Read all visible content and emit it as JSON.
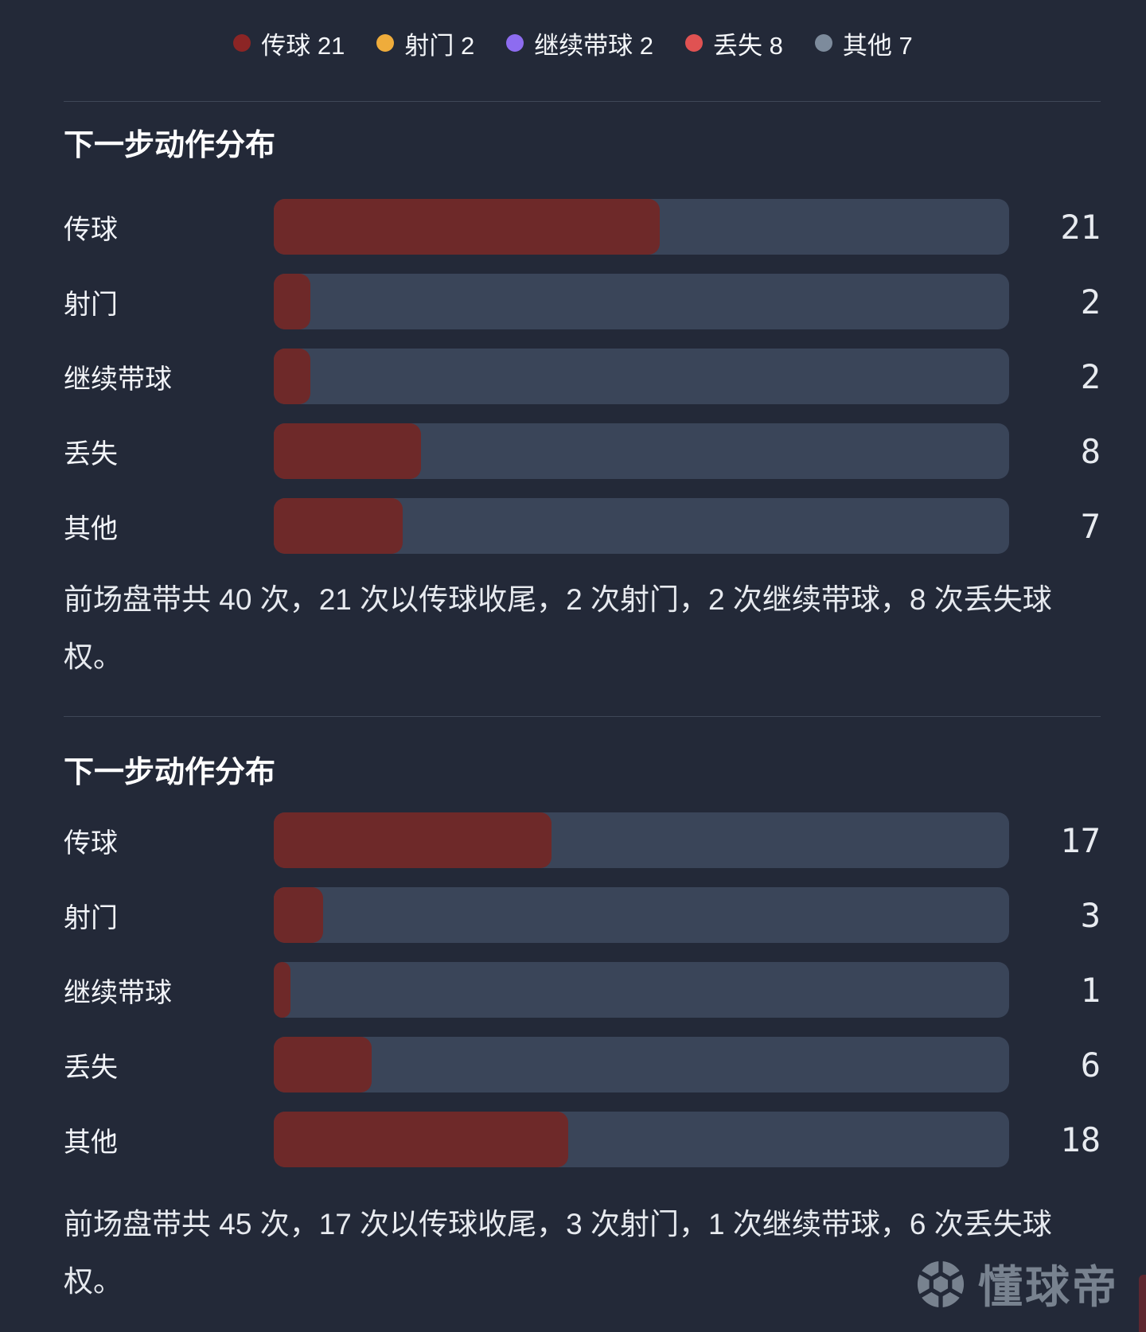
{
  "colors": {
    "background": "#232938",
    "bar_track": "#3a4559",
    "bar_fill": "#6e2929",
    "divider": "rgba(162,176,199,0.22)",
    "text_primary": "#ffffff",
    "text_secondary": "#e7eaef",
    "watermark": "#78828f",
    "corner_accent": "#5e2730"
  },
  "legend": {
    "items": [
      {
        "label": "传球 21",
        "color": "#8c2525"
      },
      {
        "label": "射门 2",
        "color": "#efac3b"
      },
      {
        "label": "继续带球 2",
        "color": "#8d6cf0"
      },
      {
        "label": "丢失 8",
        "color": "#e05252"
      },
      {
        "label": "其他 7",
        "color": "#7d8b9c"
      }
    ]
  },
  "chart_data": [
    {
      "type": "bar",
      "orientation": "horizontal",
      "title": "下一步动作分布",
      "categories": [
        "传球",
        "射门",
        "继续带球",
        "丢失",
        "其他"
      ],
      "values": [
        21,
        2,
        2,
        8,
        7
      ],
      "total": 40,
      "bar_color": "#6e2929",
      "track_color": "#3a4559",
      "value_labels": [
        "21",
        "2",
        "2",
        "8",
        "7"
      ],
      "note": "前场盘带共 40 次，21 次以传球收尾，2 次射门，2 次继续带球，8 次丢失球权。"
    },
    {
      "type": "bar",
      "orientation": "horizontal",
      "title": "下一步动作分布",
      "categories": [
        "传球",
        "射门",
        "继续带球",
        "丢失",
        "其他"
      ],
      "values": [
        17,
        3,
        1,
        6,
        18
      ],
      "total": 45,
      "bar_color": "#6e2929",
      "track_color": "#3a4559",
      "value_labels": [
        "17",
        "3",
        "1",
        "6",
        "18"
      ],
      "note": "前场盘带共 45 次，17 次以传球收尾，3 次射门，1 次继续带球，6 次丢失球权。"
    }
  ],
  "watermark": {
    "brand": "懂球帝"
  }
}
